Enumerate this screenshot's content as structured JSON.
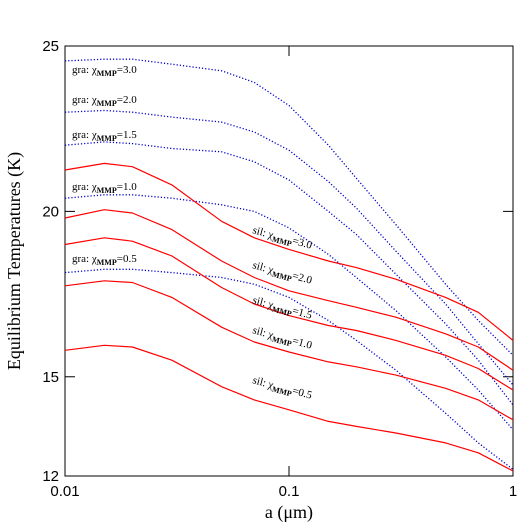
{
  "chart_data": {
    "type": "line",
    "xlabel": "a  (μm)",
    "ylabel": "Equilibrium Temperatures  (K)",
    "xscale": "log",
    "x": [
      0.01,
      0.015,
      0.02,
      0.03,
      0.05,
      0.07,
      0.1,
      0.15,
      0.2,
      0.3,
      0.5,
      0.7,
      1.0
    ],
    "xlim": [
      0.01,
      1
    ],
    "xticks": [
      0.01,
      0.1,
      1
    ],
    "ylim": [
      12,
      25
    ],
    "yticks": [
      12,
      15,
      20,
      25
    ],
    "series": [
      {
        "color": "#0000cc",
        "style": "dotted",
        "values": [
          24.55,
          24.6,
          24.6,
          24.45,
          24.25,
          23.9,
          23.2,
          22.0,
          21.0,
          19.6,
          17.8,
          16.7,
          15.65
        ]
      },
      {
        "color": "#0000cc",
        "style": "dotted",
        "values": [
          23.0,
          23.05,
          23.0,
          22.85,
          22.7,
          22.4,
          21.85,
          20.9,
          20.1,
          18.8,
          17.2,
          16.0,
          14.75
        ]
      },
      {
        "color": "#0000cc",
        "style": "dotted",
        "values": [
          22.0,
          22.1,
          22.05,
          21.9,
          21.8,
          21.5,
          20.95,
          20.0,
          19.3,
          18.1,
          16.6,
          15.5,
          14.15
        ]
      },
      {
        "color": "#0000cc",
        "style": "dotted",
        "values": [
          20.4,
          20.5,
          20.5,
          20.4,
          20.2,
          20.0,
          19.5,
          18.7,
          18.0,
          17.0,
          15.6,
          14.6,
          13.4
        ]
      },
      {
        "color": "#0000cc",
        "style": "dotted",
        "values": [
          18.15,
          18.25,
          18.25,
          18.15,
          18.0,
          17.8,
          17.4,
          16.7,
          16.1,
          15.2,
          13.9,
          13.0,
          12.2
        ]
      },
      {
        "color": "#ff0000",
        "style": "solid",
        "values": [
          21.25,
          21.45,
          21.35,
          20.8,
          19.7,
          19.2,
          18.85,
          18.5,
          18.3,
          17.95,
          17.4,
          16.95,
          16.1
        ]
      },
      {
        "color": "#ff0000",
        "style": "solid",
        "values": [
          19.8,
          20.05,
          19.95,
          19.45,
          18.5,
          18.0,
          17.6,
          17.3,
          17.1,
          16.8,
          16.3,
          15.9,
          15.2
        ]
      },
      {
        "color": "#ff0000",
        "style": "solid",
        "values": [
          19.0,
          19.2,
          19.1,
          18.65,
          17.7,
          17.2,
          16.85,
          16.55,
          16.4,
          16.1,
          15.65,
          15.25,
          14.6
        ]
      },
      {
        "color": "#ff0000",
        "style": "solid",
        "values": [
          17.75,
          17.9,
          17.85,
          17.4,
          16.5,
          16.05,
          15.75,
          15.45,
          15.3,
          15.05,
          14.65,
          14.3,
          13.7
        ]
      },
      {
        "color": "#ff0000",
        "style": "solid",
        "values": [
          15.8,
          15.95,
          15.9,
          15.5,
          14.7,
          14.3,
          14.0,
          13.65,
          13.5,
          13.3,
          13.0,
          12.7,
          12.15
        ]
      }
    ],
    "annotations": [
      {
        "prefix": "gra: χ",
        "sub": "MMP",
        "suffix": "=3.0"
      },
      {
        "prefix": "gra: χ",
        "sub": "MMP",
        "suffix": "=2.0"
      },
      {
        "prefix": "gra: χ",
        "sub": "MMP",
        "suffix": "=1.5"
      },
      {
        "prefix": "gra: χ",
        "sub": "MMP",
        "suffix": "=1.0"
      },
      {
        "prefix": "gra: χ",
        "sub": "MMP",
        "suffix": "=0.5"
      },
      {
        "prefix": "sil: χ",
        "sub": "MMP",
        "suffix": "=3.0"
      },
      {
        "prefix": "sil: χ",
        "sub": "MMP",
        "suffix": "=2.0"
      },
      {
        "prefix": "sil: χ",
        "sub": "MMP",
        "suffix": "=1.5"
      },
      {
        "prefix": "sil: χ",
        "sub": "MMP",
        "suffix": "=1.0"
      },
      {
        "prefix": "sil: χ",
        "sub": "MMP",
        "suffix": "=0.5"
      }
    ]
  }
}
